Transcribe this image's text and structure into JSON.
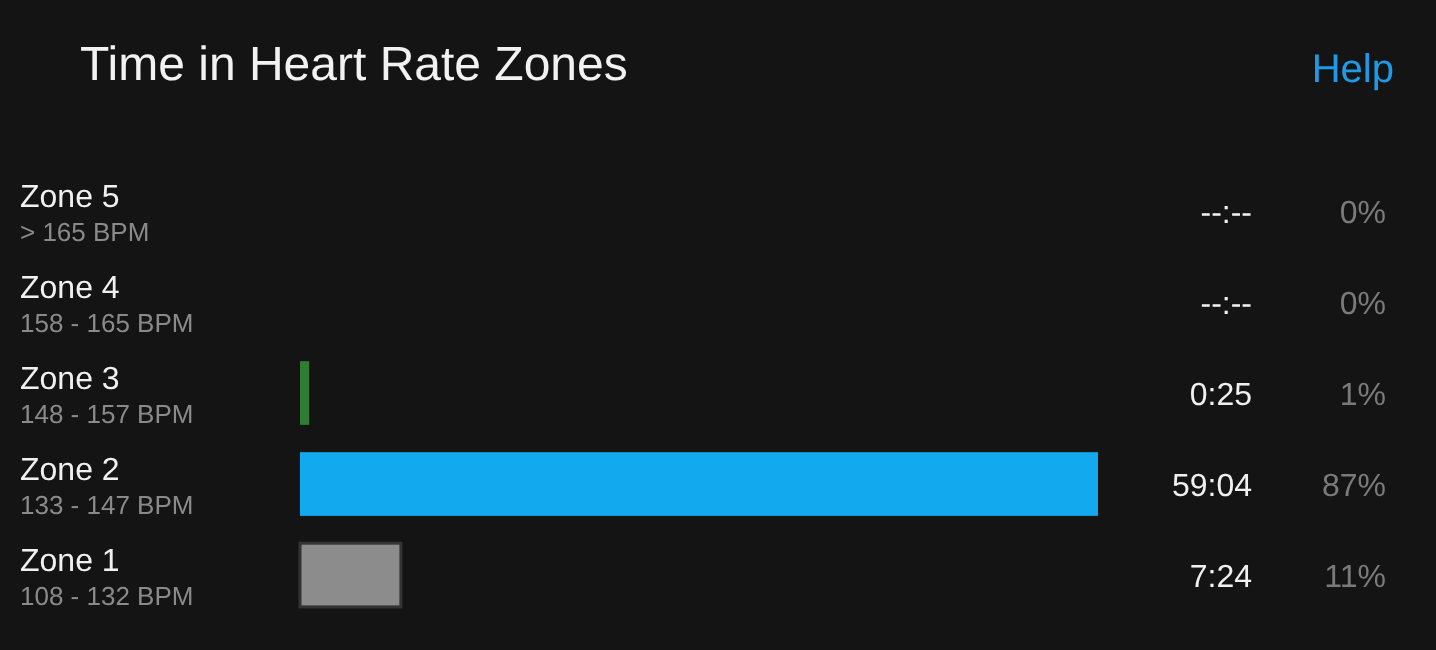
{
  "chart_data": {
    "type": "bar",
    "orientation": "horizontal",
    "title": "Time in Heart Rate Zones",
    "categories": [
      "Zone 5\n> 165 BPM",
      "Zone 4\n158 - 165 BPM",
      "Zone 3\n148 - 157 BPM",
      "Zone 2\n133 - 147 BPM",
      "Zone 1\n108 - 132 BPM"
    ],
    "values": [
      0,
      0,
      1,
      87,
      11
    ],
    "colors": [
      null,
      null,
      "#2e7d32",
      "#12a9ee",
      "#8c8c8c"
    ],
    "value_labels": [
      "0%",
      "0%",
      "1%",
      "87%",
      "11%"
    ],
    "annotations": [
      "Help",
      "--:--",
      "--:--",
      "0:25",
      "59:04",
      "7:24"
    ],
    "grid": false
  }
}
